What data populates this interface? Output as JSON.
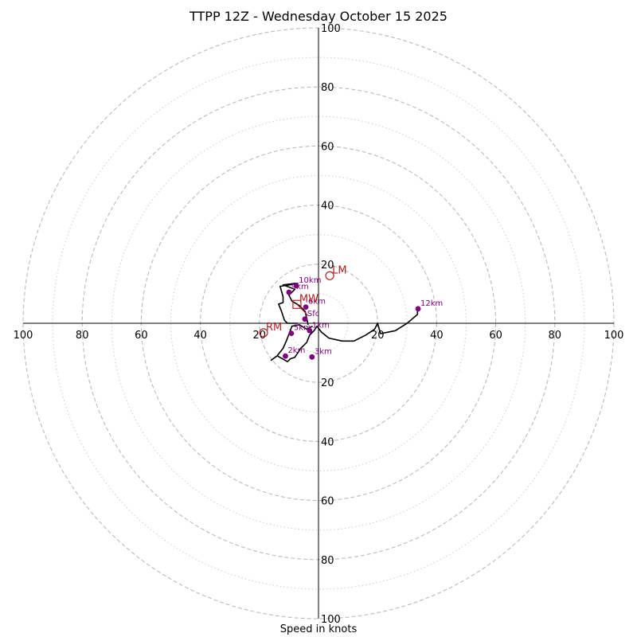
{
  "title": "TTPP 12Z - Wednesday October 15 2025",
  "footer_label": "Speed in knots",
  "colors": {
    "trace": "#000000",
    "heights": "#800080",
    "motion": "#b22222",
    "rings": "#bbbbbb",
    "axes": "#000000"
  },
  "chart_data": {
    "type": "line",
    "units": "knots",
    "rings_major": [
      20,
      40,
      60,
      80,
      100
    ],
    "rings_minor": [
      10,
      30,
      50,
      70,
      90
    ],
    "ring_max": 100,
    "tick_labels": {
      "up": [
        "20",
        "40",
        "60",
        "80",
        "100"
      ],
      "down": [
        "20",
        "40",
        "60",
        "80",
        "100"
      ],
      "left": [
        "20",
        "40",
        "60",
        "80",
        "100"
      ],
      "right": [
        "20",
        "40",
        "60",
        "80",
        "100"
      ]
    },
    "trace": [
      [
        -2.0,
        -1.0
      ],
      [
        -4.0,
        -2.0
      ],
      [
        -6.5,
        -0.5
      ],
      [
        -9.0,
        -1.0
      ],
      [
        -10.8,
        -5.8
      ],
      [
        -12.0,
        -8.5
      ],
      [
        -14.0,
        -11.0
      ],
      [
        -16.0,
        -12.5
      ],
      [
        -14.0,
        -11.0
      ],
      [
        -10.5,
        -13.0
      ],
      [
        -9.5,
        -12.0
      ],
      [
        -8.0,
        -11.5
      ],
      [
        -6.0,
        -8.5
      ],
      [
        -4.0,
        -6.5
      ],
      [
        -3.0,
        -4.0
      ],
      [
        -1.5,
        -2.5
      ],
      [
        -0.5,
        -1.0
      ],
      [
        1.0,
        -3.0
      ],
      [
        3.5,
        -5.0
      ],
      [
        8.0,
        -6.0
      ],
      [
        12.0,
        -6.0
      ],
      [
        16.0,
        -4.0
      ],
      [
        19.0,
        -2.0
      ],
      [
        20.0,
        0.0
      ],
      [
        21.0,
        -3.5
      ],
      [
        26.0,
        -2.5
      ],
      [
        30.0,
        0.0
      ],
      [
        33.5,
        3.0
      ],
      [
        33.5,
        5.0
      ]
    ],
    "upper_trace": [
      [
        -3.5,
        -0.5
      ],
      [
        -4.5,
        4.0
      ],
      [
        -6.5,
        6.0
      ],
      [
        -9.0,
        7.5
      ],
      [
        -10.0,
        9.5
      ],
      [
        -8.0,
        11.5
      ],
      [
        -12.0,
        13.0
      ],
      [
        -8.0,
        13.5
      ],
      [
        -7.0,
        13.5
      ],
      [
        -10.0,
        13.0
      ],
      [
        -13.0,
        12.5
      ],
      [
        -12.0,
        9.0
      ],
      [
        -12.0,
        7.0
      ],
      [
        -13.5,
        6.5
      ],
      [
        -12.5,
        4.0
      ],
      [
        -11.5,
        1.0
      ],
      [
        -10.5,
        0.0
      ],
      [
        -9.0,
        0.0
      ],
      [
        -7.0,
        0.0
      ]
    ],
    "height_markers": [
      {
        "label": "Sfc",
        "x": -4.6,
        "y": 1.4
      },
      {
        "label": "1km",
        "x": -3.0,
        "y": -2.5
      },
      {
        "label": "2km",
        "x": -11.2,
        "y": -11.1
      },
      {
        "label": "3km",
        "x": -2.2,
        "y": -11.4
      },
      {
        "label": "5km",
        "x": -9.2,
        "y": -3.4
      },
      {
        "label": "6km",
        "x": -4.3,
        "y": 5.5
      },
      {
        "label": "9km",
        "x": -10.0,
        "y": 10.5
      },
      {
        "label": "10km",
        "x": -7.5,
        "y": 12.7
      },
      {
        "label": "12km",
        "x": 33.7,
        "y": 4.9
      }
    ],
    "motion_markers": [
      {
        "label": "LM",
        "x": 3.8,
        "y": 16.1,
        "shape": "circle"
      },
      {
        "label": "RM",
        "x": -18.6,
        "y": -3.2,
        "shape": "circle"
      },
      {
        "label": "MW",
        "x": -7.3,
        "y": 6.4,
        "shape": "square"
      }
    ]
  }
}
